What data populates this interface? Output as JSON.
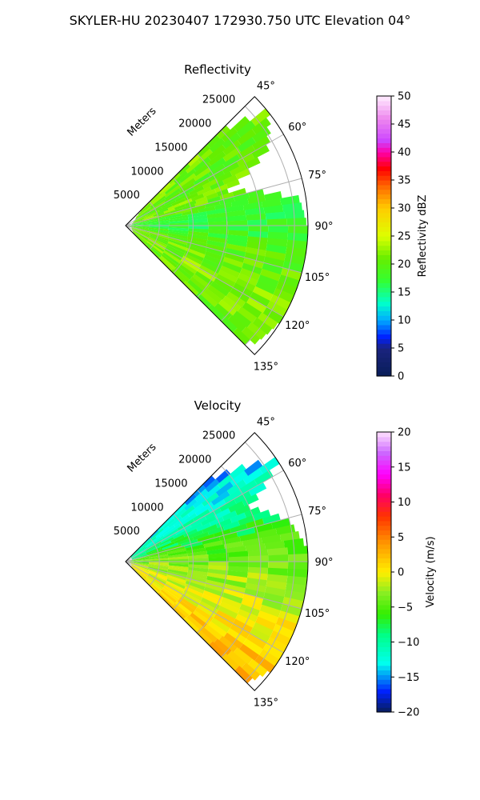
{
  "suptitle": "SKYLER-HU  20230407  172930.750 UTC Elevation 04°",
  "chart_data": [
    {
      "type": "heatmap",
      "title": "Reflectivity",
      "rlabel": "Meters",
      "r_ticks": [
        5000,
        10000,
        15000,
        20000,
        25000
      ],
      "theta_ticks": [
        "45°",
        "60°",
        "75°",
        "90°",
        "105°",
        "120°",
        "135°"
      ],
      "theta_range_deg": [
        45,
        135
      ],
      "r_max": 27000,
      "colorbar": {
        "label": "Reflectivity dBZ",
        "range": [
          0,
          50
        ],
        "ticks": [
          "0",
          "5",
          "10",
          "15",
          "20",
          "25",
          "30",
          "35",
          "40",
          "45",
          "50"
        ]
      },
      "field": [
        {
          "az": 45,
          "r0": 3000,
          "r1": 21000,
          "value": 22
        },
        {
          "az": 50,
          "r0": 2000,
          "r1": 27000,
          "value": 21
        },
        {
          "az": 60,
          "r0": 1500,
          "r1": 24000,
          "value": 20
        },
        {
          "az": 70,
          "r0": 1000,
          "r1": 16000,
          "value": 22
        },
        {
          "az": 80,
          "r0": 1000,
          "r1": 26000,
          "value": 18
        },
        {
          "az": 90,
          "r0": 500,
          "r1": 27000,
          "value": 17
        },
        {
          "az": 100,
          "r0": 500,
          "r1": 27000,
          "value": 20
        },
        {
          "az": 110,
          "r0": 1000,
          "r1": 27000,
          "value": 21
        },
        {
          "az": 120,
          "r0": 1000,
          "r1": 27000,
          "value": 22
        },
        {
          "az": 130,
          "r0": 1500,
          "r1": 26000,
          "value": 21
        },
        {
          "az": 135,
          "r0": 2000,
          "r1": 24000,
          "value": 20
        }
      ]
    },
    {
      "type": "heatmap",
      "title": "Velocity",
      "rlabel": "Meters",
      "r_ticks": [
        5000,
        10000,
        15000,
        20000,
        25000
      ],
      "theta_ticks": [
        "45°",
        "60°",
        "75°",
        "90°",
        "105°",
        "120°",
        "135°"
      ],
      "theta_range_deg": [
        45,
        135
      ],
      "r_max": 27000,
      "colorbar": {
        "label": "Velocity (m/s)",
        "range": [
          -20,
          20
        ],
        "ticks": [
          "−20",
          "−15",
          "−10",
          "−5",
          "0",
          "5",
          "10",
          "15",
          "20"
        ]
      },
      "field": [
        {
          "az": 45,
          "r0": 1000,
          "r1": 18000,
          "value": -12
        },
        {
          "az": 55,
          "r0": 1000,
          "r1": 27000,
          "value": -11
        },
        {
          "az": 65,
          "r0": 1000,
          "r1": 20000,
          "value": -8
        },
        {
          "az": 75,
          "r0": 1000,
          "r1": 25000,
          "value": -6
        },
        {
          "az": 85,
          "r0": 500,
          "r1": 27000,
          "value": -4
        },
        {
          "az": 95,
          "r0": 500,
          "r1": 27000,
          "value": -3
        },
        {
          "az": 105,
          "r0": 500,
          "r1": 27000,
          "value": -2
        },
        {
          "az": 115,
          "r0": 1000,
          "r1": 27000,
          "value": -1
        },
        {
          "az": 125,
          "r0": 1000,
          "r1": 27000,
          "value": 0
        },
        {
          "az": 135,
          "r0": 1500,
          "r1": 25000,
          "value": 1
        }
      ]
    }
  ]
}
